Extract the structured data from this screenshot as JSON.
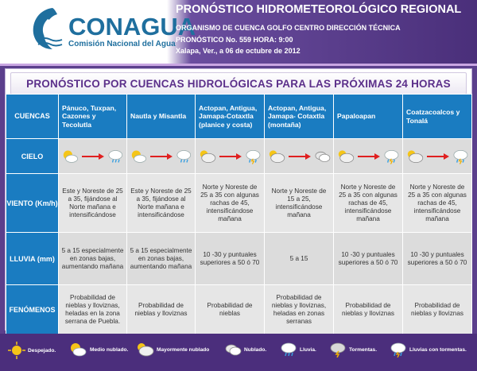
{
  "header": {
    "logo_name": "CONAGUA",
    "logo_sub": "Comisión Nacional del Agua",
    "title": "PRONÓSTICO HIDROMETEOROLÓGICO REGIONAL",
    "line1": "ORGANISMO DE CUENCA GOLFO CENTRO  DIRECCIÓN TÉCNICA",
    "line2": "PRONÓSTICO No. 559  HORA: 9:00",
    "line3": "Xalapa, Ver., a 06 de octubre de 2012"
  },
  "banner": "PRONÓSTICO POR CUENCAS HIDROLÓGICAS PARA LAS PRÓXIMAS 24 HORAS",
  "columns": {
    "label": "CUENCAS",
    "c1": "Pánuco, Tuxpan, Cazones y Tecolutla",
    "c2": "Nautla y Misantla",
    "c3": "Actopan, Antigua, Jamapa-Cotaxtla (planice y costa)",
    "c4": "Actopan, Antigua, Jamapa- Cotaxtla (montaña)",
    "c5": "Papaloapan",
    "c6": "Coatzacoalcos y Tonalá"
  },
  "rows": {
    "cielo": {
      "label": "CIELO"
    },
    "viento": {
      "label": "VIENTO (Km/h)",
      "c1": "Este y Noreste de 25 a 35, fijándose al Norte mañana e intensificándose",
      "c2": "Este y Noreste de 25 a 35, fijándose al Norte mañana e intensificándose",
      "c3": "Norte y Noreste de 25 a 35 con algunas rachas de 45, intensificándose mañana",
      "c4": "Norte y Noreste de 15 a 25, intensificándose mañana",
      "c5": "Norte y Noreste de 25 a 35 con algunas rachas de 45, intensificándose mañana",
      "c6": "Norte y Noreste de 25 a 35 con algunas rachas de 45, intensificándose mañana"
    },
    "lluvia": {
      "label": "LLUVIA (mm)",
      "c1": "5 a 15 especialmente en zonas bajas, aumentando mañana",
      "c2": "5 a 15 especialmente en zonas bajas, aumentando mañana",
      "c3": "10 -30 y puntuales superiores a 50 ó 70",
      "c4": "5 a 15",
      "c5": "10 -30 y puntuales superiores a 50 ó 70",
      "c6": "10 -30 y puntuales superiores a 50 ó 70"
    },
    "fenomenos": {
      "label": "FENÓMENOS",
      "c1": "Probabilidad de nieblas y lloviznas, heladas en la zona serrana de Puebla.",
      "c2": "Probabilidad de nieblas y lloviznas",
      "c3": "Probabilidad de nieblas",
      "c4": "Probabilidad de nieblas y lloviznas, heladas en zonas serranas",
      "c5": "Probabilidad de nieblas y lloviznas",
      "c6": "Probabilidad de nieblas y lloviznas"
    }
  },
  "legend": {
    "despejado": "Despejado.",
    "medio_nublado": "Medio nublado.",
    "mayormente_nublado": "Mayormente nublado",
    "nublado": "Nublado.",
    "lluvia": "Lluvia.",
    "tormentas": "Tormentas.",
    "lluvias_tormentas": "Lluvias con tormentas."
  },
  "colors": {
    "brand": "#1f6f9e",
    "header_bg": "#4a2f7a",
    "table_header": "#1a7cc1",
    "banner_text": "#5b2f8a",
    "arrow": "#e02020"
  }
}
